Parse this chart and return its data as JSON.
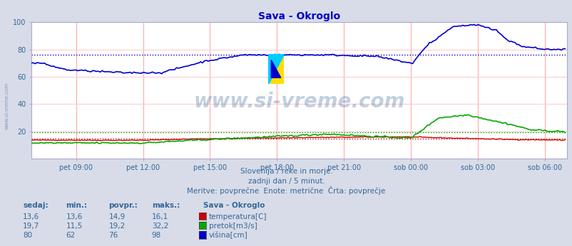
{
  "title": "Sava - Okroglo",
  "title_color": "#0000cc",
  "bg_color": "#d8dce8",
  "plot_bg_color": "#ffffff",
  "grid_color_v": "#ffaaaa",
  "grid_color_h": "#ffcccc",
  "text_color": "#336699",
  "ylim": [
    0,
    100
  ],
  "xlim": [
    0,
    288
  ],
  "xtick_positions": [
    24,
    60,
    96,
    132,
    168,
    204,
    240,
    276
  ],
  "xtick_labels": [
    "pet 09:00",
    "pet 12:00",
    "pet 15:00",
    "pet 18:00",
    "pet 21:00",
    "sob 00:00",
    "sob 03:00",
    "sob 06:00"
  ],
  "ytick_positions": [
    20,
    40,
    60,
    80,
    100
  ],
  "ytick_labels": [
    "20",
    "40",
    "60",
    "80",
    "100"
  ],
  "subtitle1": "Slovenija / reke in morje.",
  "subtitle2": "zadnji dan / 5 minut.",
  "subtitle3": "Meritve: povprečne  Enote: metrične  Črta: povprečje",
  "legend_title": "Sava - Okroglo",
  "legend_items": [
    {
      "label": "temperatura[C]",
      "color": "#cc0000"
    },
    {
      "label": "pretok[m3/s]",
      "color": "#00aa00"
    },
    {
      "label": "višina[cm]",
      "color": "#0000cc"
    }
  ],
  "table_headers": [
    "sedaj:",
    "min.:",
    "povpr.:",
    "maks.:"
  ],
  "table_rows": [
    [
      "13,6",
      "13,6",
      "14,9",
      "16,1"
    ],
    [
      "19,7",
      "11,5",
      "19,2",
      "32,2"
    ],
    [
      "80",
      "62",
      "76",
      "98"
    ]
  ],
  "avg_temp": 14.9,
  "avg_flow": 19.2,
  "avg_height": 76,
  "watermark_text": "www.si-vreme.com",
  "watermark_color": "#336699",
  "watermark_alpha": 0.3,
  "temp_color": "#cc0000",
  "flow_color": "#00aa00",
  "height_color": "#0000cc"
}
